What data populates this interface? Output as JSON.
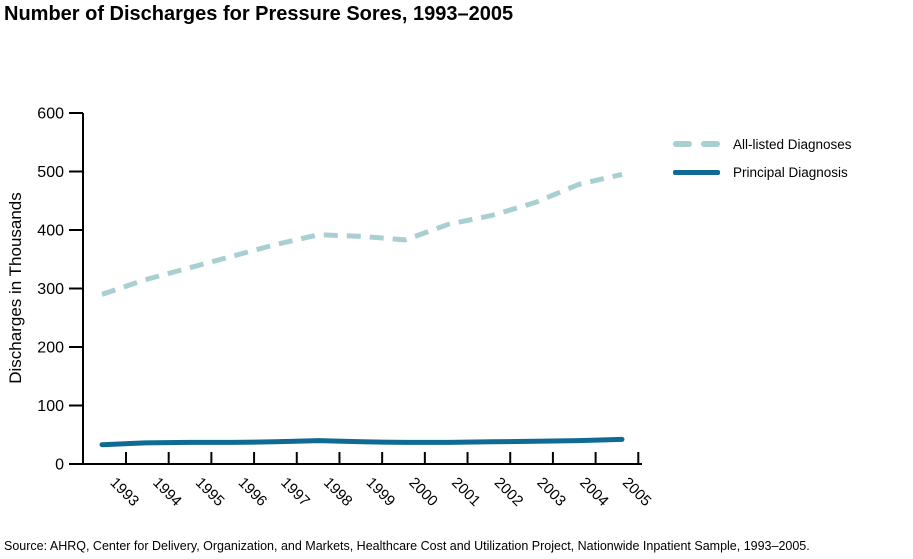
{
  "page": {
    "background": "#ffffff",
    "text_color": "#000000"
  },
  "source_note": "Source:  AHRQ, Center for Delivery, Organization, and Markets, Healthcare Cost and Utilization Project, Nationwide Inpatient Sample, 1993–2005.",
  "chart_data": {
    "type": "line",
    "title": "Number of Discharges for Pressure Sores, 1993–2005",
    "xlabel": "",
    "ylabel": "Discharges in Thousands",
    "categories": [
      "1993",
      "1994",
      "1995",
      "1996",
      "1997",
      "1998",
      "1999",
      "2000",
      "2001",
      "2002",
      "2003",
      "2004",
      "2005"
    ],
    "series": [
      {
        "name": "All-listed Diagnoses",
        "style": "dashed",
        "color": "#a8cfd2",
        "values": [
          290,
          315,
          335,
          355,
          375,
          392,
          389,
          383,
          410,
          425,
          447,
          478,
          495
        ]
      },
      {
        "name": "Principal Diagnosis",
        "style": "solid",
        "color": "#0f6a94",
        "values": [
          33,
          36,
          37,
          37,
          38,
          40,
          38,
          37,
          37,
          38,
          39,
          40,
          42
        ]
      }
    ],
    "ylim": [
      0,
      600
    ],
    "yticks": [
      0,
      100,
      200,
      300,
      400,
      500,
      600
    ],
    "grid": false,
    "legend_position": "right",
    "axis_color": "#000000"
  }
}
